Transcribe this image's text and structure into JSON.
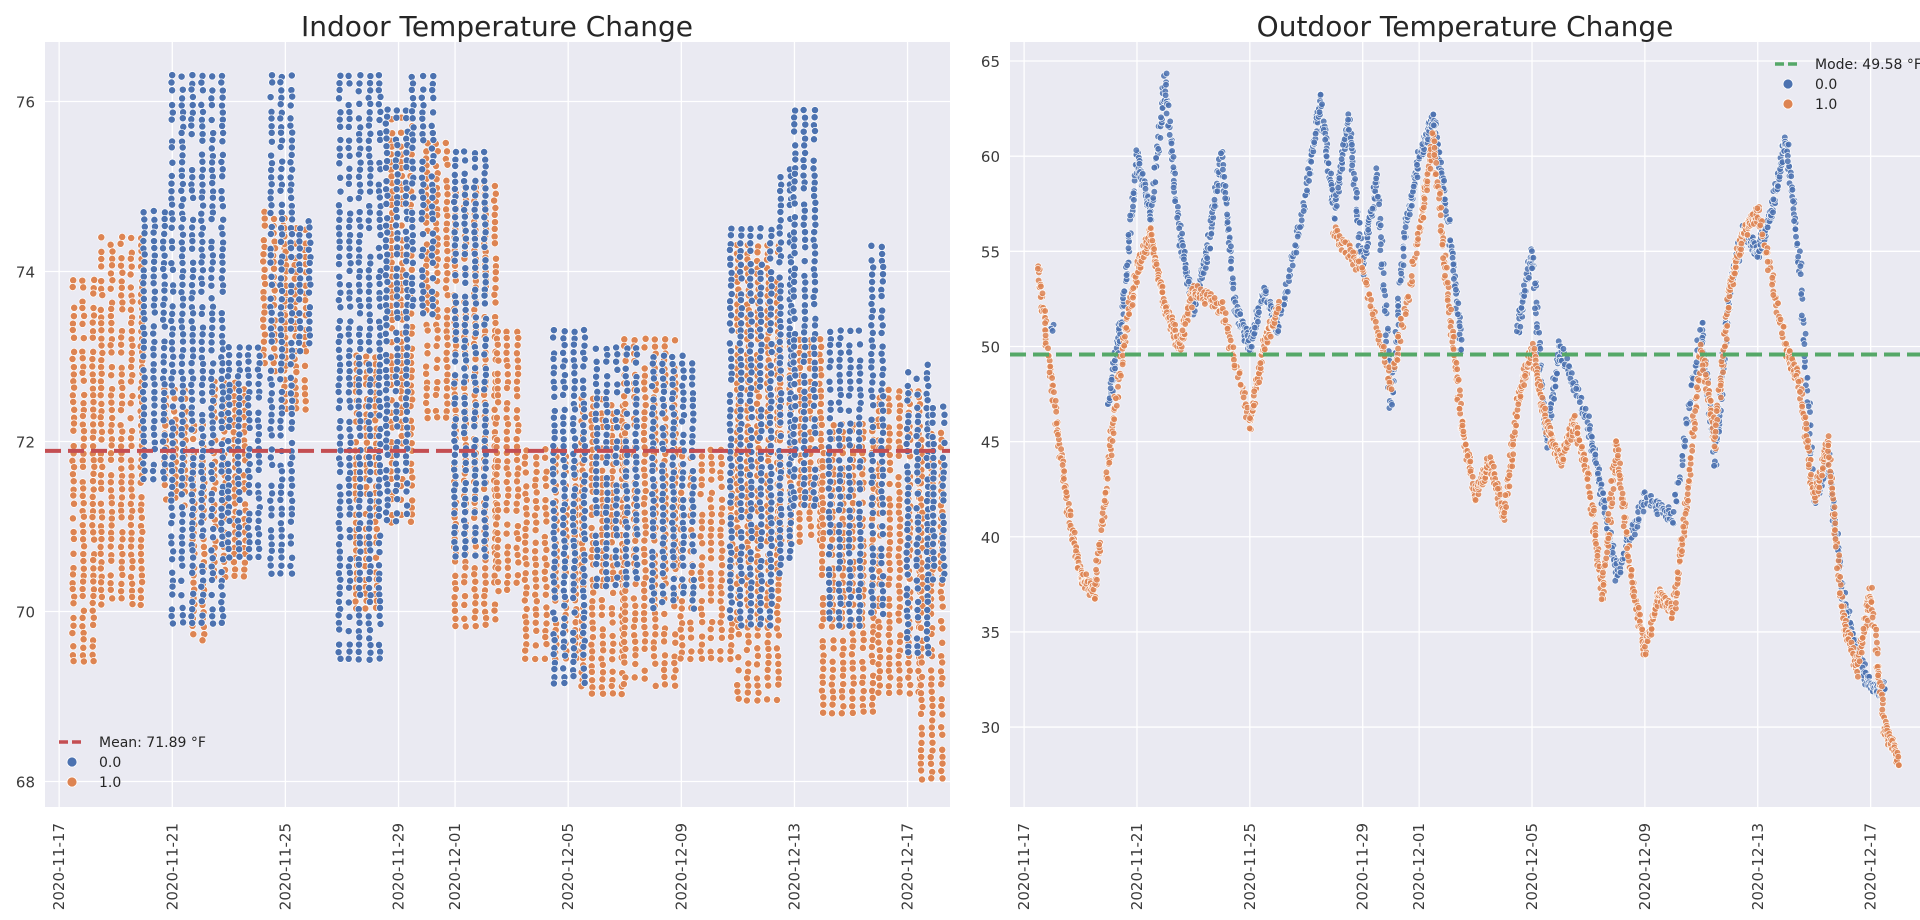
{
  "colors": {
    "background": "#ffffff",
    "plot_bg": "#eaeaf2",
    "grid": "#ffffff",
    "series_0": "#4c72b0",
    "series_1": "#dd8452",
    "mean_line": "#c44e52",
    "mode_line": "#55a868",
    "text": "#262626"
  },
  "chart_data": [
    {
      "type": "scatter",
      "title": "Indoor Temperature Change",
      "xlabel": "",
      "ylabel": "",
      "x_ticks": [
        "2020-11-17",
        "2020-11-21",
        "2020-11-25",
        "2020-11-29",
        "2020-12-01",
        "2020-12-05",
        "2020-12-09",
        "2020-12-13",
        "2020-12-17"
      ],
      "y_ticks": [
        "68",
        "70",
        "72",
        "74",
        "76"
      ],
      "xlim": [
        "2020-11-16T12:00",
        "2020-12-18T12:00"
      ],
      "ylim": [
        67.7,
        76.7
      ],
      "grid": true,
      "legend_position": "lower-left",
      "reference_line": {
        "label": "Mean: 71.89 °F",
        "value": 71.89,
        "style": "dashed"
      },
      "legend": [
        "0.0",
        "1.0"
      ],
      "series": [
        {
          "name": "0.0",
          "segments": [
            {
              "start": "2020-11-20T00:00",
              "end": "2020-11-20T22:00",
              "low": 71.5,
              "high": 74.7
            },
            {
              "start": "2020-11-21T00:00",
              "end": "2020-11-22T22:00",
              "low": 69.8,
              "high": 76.3
            },
            {
              "start": "2020-11-23T00:00",
              "end": "2020-11-24T08:00",
              "low": 70.6,
              "high": 73.1
            },
            {
              "start": "2020-11-24T12:00",
              "end": "2020-11-25T08:00",
              "low": 70.4,
              "high": 76.3
            },
            {
              "start": "2020-11-25T12:00",
              "end": "2020-11-25T22:00",
              "low": 73.0,
              "high": 74.6
            },
            {
              "start": "2020-11-26T22:00",
              "end": "2020-11-28T10:00",
              "low": 69.4,
              "high": 76.3
            },
            {
              "start": "2020-11-28T14:00",
              "end": "2020-11-29T08:00",
              "low": 71.0,
              "high": 75.9
            },
            {
              "start": "2020-11-29T12:00",
              "end": "2020-11-30T10:00",
              "low": 73.5,
              "high": 76.3
            },
            {
              "start": "2020-12-01T00:00",
              "end": "2020-12-02T06:00",
              "low": 70.6,
              "high": 75.4
            },
            {
              "start": "2020-12-04T12:00",
              "end": "2020-12-05T18:00",
              "low": 69.1,
              "high": 73.3
            },
            {
              "start": "2020-12-06T00:00",
              "end": "2020-12-07T12:00",
              "low": 70.3,
              "high": 73.1
            },
            {
              "start": "2020-12-08T00:00",
              "end": "2020-12-09T12:00",
              "low": 70.0,
              "high": 73.0
            },
            {
              "start": "2020-12-10T18:00",
              "end": "2020-12-12T12:00",
              "low": 69.8,
              "high": 74.5
            },
            {
              "start": "2020-12-12T12:00",
              "end": "2020-12-13T00:00",
              "low": 70.4,
              "high": 75.2
            },
            {
              "start": "2020-12-13T00:00",
              "end": "2020-12-14T00:00",
              "low": 71.2,
              "high": 75.9
            },
            {
              "start": "2020-12-14T06:00",
              "end": "2020-12-15T12:00",
              "low": 69.8,
              "high": 73.3
            },
            {
              "start": "2020-12-15T18:00",
              "end": "2020-12-16T06:00",
              "low": 69.9,
              "high": 74.3
            },
            {
              "start": "2020-12-17T00:00",
              "end": "2020-12-17T18:00",
              "low": 69.5,
              "high": 72.9
            },
            {
              "start": "2020-12-17T22:00",
              "end": "2020-12-18T10:00",
              "low": 70.3,
              "high": 72.4
            }
          ]
        },
        {
          "name": "1.0",
          "segments": [
            {
              "start": "2020-11-17T12:00",
              "end": "2020-11-18T12:00",
              "low": 69.4,
              "high": 73.9
            },
            {
              "start": "2020-11-18T12:00",
              "end": "2020-11-20T00:00",
              "low": 70.0,
              "high": 74.4
            },
            {
              "start": "2020-11-20T18:00",
              "end": "2020-11-21T12:00",
              "low": 71.2,
              "high": 72.6
            },
            {
              "start": "2020-11-21T18:00",
              "end": "2020-11-22T06:00",
              "low": 69.6,
              "high": 72.2
            },
            {
              "start": "2020-11-22T12:00",
              "end": "2020-11-23T18:00",
              "low": 70.4,
              "high": 72.7
            },
            {
              "start": "2020-11-24T06:00",
              "end": "2020-11-25T00:00",
              "low": 72.8,
              "high": 74.7
            },
            {
              "start": "2020-11-25T00:00",
              "end": "2020-11-25T18:00",
              "low": 72.3,
              "high": 74.5
            },
            {
              "start": "2020-11-27T12:00",
              "end": "2020-11-28T12:00",
              "low": 70.0,
              "high": 73.0
            },
            {
              "start": "2020-11-28T18:00",
              "end": "2020-11-29T12:00",
              "low": 71.0,
              "high": 75.8
            },
            {
              "start": "2020-11-30T00:00",
              "end": "2020-11-30T18:00",
              "low": 72.2,
              "high": 75.5
            },
            {
              "start": "2020-12-01T00:00",
              "end": "2020-12-02T12:00",
              "low": 69.8,
              "high": 75.0
            },
            {
              "start": "2020-12-02T12:00",
              "end": "2020-12-03T12:00",
              "low": 70.2,
              "high": 73.3
            },
            {
              "start": "2020-12-03T12:00",
              "end": "2020-12-05T12:00",
              "low": 69.4,
              "high": 71.9
            },
            {
              "start": "2020-12-05T12:00",
              "end": "2020-12-07T00:00",
              "low": 69.0,
              "high": 72.5
            },
            {
              "start": "2020-12-07T00:00",
              "end": "2020-12-09T00:00",
              "low": 69.1,
              "high": 73.2
            },
            {
              "start": "2020-12-09T00:00",
              "end": "2020-12-11T00:00",
              "low": 69.4,
              "high": 71.9
            },
            {
              "start": "2020-12-11T00:00",
              "end": "2020-12-12T12:00",
              "low": 68.9,
              "high": 74.3
            },
            {
              "start": "2020-12-12T12:00",
              "end": "2020-12-14T00:00",
              "low": 70.8,
              "high": 73.2
            },
            {
              "start": "2020-12-14T00:00",
              "end": "2020-12-16T00:00",
              "low": 68.8,
              "high": 72.2
            },
            {
              "start": "2020-12-16T00:00",
              "end": "2020-12-17T12:00",
              "low": 69.0,
              "high": 72.6
            },
            {
              "start": "2020-12-17T12:00",
              "end": "2020-12-18T12:00",
              "low": 68.0,
              "high": 72.1
            }
          ]
        }
      ]
    },
    {
      "type": "scatter",
      "title": "Outdoor Temperature Change",
      "xlabel": "",
      "ylabel": "",
      "x_ticks": [
        "2020-11-17",
        "2020-11-21",
        "2020-11-25",
        "2020-11-29",
        "2020-12-01",
        "2020-12-05",
        "2020-12-09",
        "2020-12-13",
        "2020-12-17"
      ],
      "y_ticks": [
        "30",
        "35",
        "40",
        "45",
        "50",
        "55",
        "60",
        "65"
      ],
      "xlim": [
        "2020-11-16T12:00",
        "2020-12-18T18:00"
      ],
      "ylim": [
        25.8,
        66
      ],
      "grid": true,
      "legend_position": "upper-right",
      "reference_line": {
        "label": "Mode: 49.58 °F",
        "value": 49.58,
        "style": "dashed"
      },
      "legend": [
        "0.0",
        "1.0"
      ],
      "series": [
        {
          "name": "0.0",
          "points": [
            [
              "2020-11-18T00:00",
              51
            ],
            [
              "2020-11-20T00:00",
              47
            ],
            [
              "2020-11-20T12:00",
              52
            ],
            [
              "2020-11-21T00:00",
              60
            ],
            [
              "2020-11-21T12:00",
              57
            ],
            [
              "2020-11-22T00:00",
              64
            ],
            [
              "2020-11-22T12:00",
              56
            ],
            [
              "2020-11-23T00:00",
              52
            ],
            [
              "2020-11-23T12:00",
              55
            ],
            [
              "2020-11-24T00:00",
              60
            ],
            [
              "2020-11-24T12:00",
              52
            ],
            [
              "2020-11-25T00:00",
              50
            ],
            [
              "2020-11-25T12:00",
              53
            ],
            [
              "2020-11-26T00:00",
              51
            ],
            [
              "2020-11-27T00:00",
              58
            ],
            [
              "2020-11-27T12:00",
              63
            ],
            [
              "2020-11-28T00:00",
              57
            ],
            [
              "2020-11-28T12:00",
              62
            ],
            [
              "2020-11-29T00:00",
              54
            ],
            [
              "2020-11-29T12:00",
              59
            ],
            [
              "2020-11-30T00:00",
              47
            ],
            [
              "2020-11-30T12:00",
              56
            ],
            [
              "2020-12-01T00:00",
              60
            ],
            [
              "2020-12-01T12:00",
              62
            ],
            [
              "2020-12-02T00:00",
              57
            ],
            [
              "2020-12-02T12:00",
              50
            ],
            [
              "2020-12-04T12:00",
              51
            ],
            [
              "2020-12-05T00:00",
              55
            ],
            [
              "2020-12-05T12:00",
              45
            ],
            [
              "2020-12-06T00:00",
              50
            ],
            [
              "2020-12-07T00:00",
              46
            ],
            [
              "2020-12-07T12:00",
              42
            ],
            [
              "2020-12-08T00:00",
              38
            ],
            [
              "2020-12-09T00:00",
              42
            ],
            [
              "2020-12-10T00:00",
              41
            ],
            [
              "2020-12-11T00:00",
              51
            ],
            [
              "2020-12-11T12:00",
              44
            ],
            [
              "2020-12-12T00:00",
              53
            ],
            [
              "2020-12-12T12:00",
              56
            ],
            [
              "2020-12-13T00:00",
              55
            ],
            [
              "2020-12-13T12:00",
              57
            ],
            [
              "2020-12-14T00:00",
              61
            ],
            [
              "2020-12-14T12:00",
              54
            ],
            [
              "2020-12-15T00:00",
              42
            ],
            [
              "2020-12-15T12:00",
              44
            ],
            [
              "2020-12-16T00:00",
              37
            ],
            [
              "2020-12-16T12:00",
              34
            ],
            [
              "2020-12-17T00:00",
              32
            ],
            [
              "2020-12-17T12:00",
              32
            ]
          ]
        },
        {
          "name": "1.0",
          "points": [
            [
              "2020-11-17T12:00",
              54
            ],
            [
              "2020-11-18T00:00",
              48
            ],
            [
              "2020-11-18T12:00",
              42
            ],
            [
              "2020-11-19T00:00",
              38
            ],
            [
              "2020-11-19T12:00",
              37
            ],
            [
              "2020-11-20T00:00",
              44
            ],
            [
              "2020-11-20T12:00",
              50
            ],
            [
              "2020-11-21T00:00",
              54
            ],
            [
              "2020-11-21T12:00",
              56
            ],
            [
              "2020-11-22T00:00",
              52
            ],
            [
              "2020-11-22T12:00",
              50
            ],
            [
              "2020-11-23T00:00",
              53
            ],
            [
              "2020-11-24T00:00",
              52
            ],
            [
              "2020-11-25T00:00",
              46
            ],
            [
              "2020-11-25T12:00",
              50
            ],
            [
              "2020-11-26T00:00",
              52
            ],
            [
              "2020-11-28T00:00",
              56
            ],
            [
              "2020-11-29T00:00",
              54
            ],
            [
              "2020-11-30T00:00",
              48
            ],
            [
              "2020-12-01T00:00",
              56
            ],
            [
              "2020-12-01T12:00",
              61
            ],
            [
              "2020-12-02T00:00",
              53
            ],
            [
              "2020-12-02T12:00",
              46
            ],
            [
              "2020-12-03T00:00",
              42
            ],
            [
              "2020-12-03T12:00",
              44
            ],
            [
              "2020-12-04T00:00",
              41
            ],
            [
              "2020-12-04T12:00",
              47
            ],
            [
              "2020-12-05T00:00",
              50
            ],
            [
              "2020-12-05T12:00",
              46
            ],
            [
              "2020-12-06T00:00",
              44
            ],
            [
              "2020-12-06T12:00",
              46
            ],
            [
              "2020-12-07T00:00",
              43
            ],
            [
              "2020-12-07T12:00",
              37
            ],
            [
              "2020-12-08T00:00",
              45
            ],
            [
              "2020-12-08T12:00",
              38
            ],
            [
              "2020-12-09T00:00",
              34
            ],
            [
              "2020-12-09T12:00",
              37
            ],
            [
              "2020-12-10T00:00",
              36
            ],
            [
              "2020-12-10T12:00",
              42
            ],
            [
              "2020-12-11T00:00",
              50
            ],
            [
              "2020-12-11T12:00",
              45
            ],
            [
              "2020-12-12T00:00",
              53
            ],
            [
              "2020-12-12T12:00",
              56
            ],
            [
              "2020-12-13T00:00",
              57
            ],
            [
              "2020-12-14T00:00",
              50
            ],
            [
              "2020-12-14T12:00",
              48
            ],
            [
              "2020-12-15T00:00",
              42
            ],
            [
              "2020-12-15T12:00",
              45
            ],
            [
              "2020-12-16T00:00",
              36
            ],
            [
              "2020-12-16T12:00",
              33
            ],
            [
              "2020-12-17T00:00",
              37
            ],
            [
              "2020-12-17T12:00",
              30
            ],
            [
              "2020-12-18T00:00",
              28
            ]
          ]
        }
      ]
    }
  ]
}
